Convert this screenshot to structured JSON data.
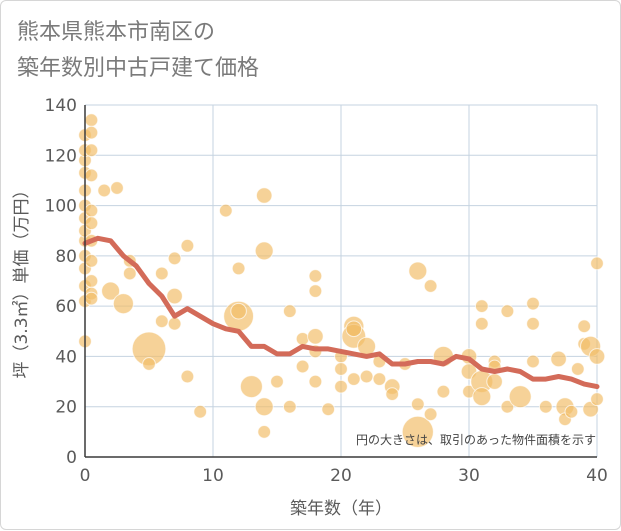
{
  "title_lines": [
    "熊本県熊本市南区の",
    "築年数別中古戸建て価格"
  ],
  "colors": {
    "bubble": "#f2bd67",
    "line": "#d36b59",
    "grid": "#c5d3e0",
    "axis": "#3a3a3a"
  },
  "chart_data": {
    "type": "scatter",
    "title": "熊本県熊本市南区の 築年数別中古戸建て価格",
    "xlabel": "築年数（年）",
    "ylabel": "坪（3.3㎡）単価（万円）",
    "xlim": [
      0,
      40
    ],
    "ylim": [
      0,
      140
    ],
    "xticks": [
      0,
      10,
      20,
      30,
      40
    ],
    "yticks": [
      0,
      20,
      40,
      60,
      80,
      100,
      120,
      140
    ],
    "grid": true,
    "note": "円の大きさは、取引のあった物件面積を示す",
    "series": [
      {
        "type": "bubble",
        "points": [
          {
            "x": 0,
            "y": 46,
            "size": 2
          },
          {
            "x": 0,
            "y": 62,
            "size": 2
          },
          {
            "x": 0,
            "y": 68,
            "size": 2
          },
          {
            "x": 0,
            "y": 75,
            "size": 2
          },
          {
            "x": 0,
            "y": 80,
            "size": 2
          },
          {
            "x": 0,
            "y": 86,
            "size": 2
          },
          {
            "x": 0,
            "y": 90,
            "size": 2
          },
          {
            "x": 0,
            "y": 95,
            "size": 2
          },
          {
            "x": 0,
            "y": 100,
            "size": 2
          },
          {
            "x": 0,
            "y": 106,
            "size": 2
          },
          {
            "x": 0,
            "y": 113,
            "size": 2
          },
          {
            "x": 0,
            "y": 118,
            "size": 2
          },
          {
            "x": 0,
            "y": 122,
            "size": 2
          },
          {
            "x": 0,
            "y": 128,
            "size": 2
          },
          {
            "x": 0.5,
            "y": 134,
            "size": 2
          },
          {
            "x": 0.5,
            "y": 129,
            "size": 2
          },
          {
            "x": 0.5,
            "y": 122,
            "size": 2
          },
          {
            "x": 0.5,
            "y": 112,
            "size": 2
          },
          {
            "x": 0.5,
            "y": 98,
            "size": 2
          },
          {
            "x": 0.5,
            "y": 93,
            "size": 2
          },
          {
            "x": 0.5,
            "y": 86,
            "size": 2
          },
          {
            "x": 0.5,
            "y": 78,
            "size": 2
          },
          {
            "x": 0.5,
            "y": 70,
            "size": 2
          },
          {
            "x": 0.5,
            "y": 65,
            "size": 2
          },
          {
            "x": 0.5,
            "y": 63,
            "size": 2
          },
          {
            "x": 1.5,
            "y": 106,
            "size": 2
          },
          {
            "x": 2.5,
            "y": 107,
            "size": 2
          },
          {
            "x": 2,
            "y": 66,
            "size": 4
          },
          {
            "x": 3,
            "y": 61,
            "size": 5
          },
          {
            "x": 3.5,
            "y": 78,
            "size": 2
          },
          {
            "x": 3.5,
            "y": 73,
            "size": 2
          },
          {
            "x": 5,
            "y": 43,
            "size": 14
          },
          {
            "x": 5,
            "y": 37,
            "size": 2
          },
          {
            "x": 6,
            "y": 73,
            "size": 2
          },
          {
            "x": 6,
            "y": 54,
            "size": 2
          },
          {
            "x": 7,
            "y": 79,
            "size": 2
          },
          {
            "x": 7,
            "y": 64,
            "size": 3
          },
          {
            "x": 7,
            "y": 53,
            "size": 2
          },
          {
            "x": 8,
            "y": 84,
            "size": 2
          },
          {
            "x": 8,
            "y": 32,
            "size": 2
          },
          {
            "x": 9,
            "y": 18,
            "size": 2
          },
          {
            "x": 11,
            "y": 98,
            "size": 2
          },
          {
            "x": 12,
            "y": 75,
            "size": 2
          },
          {
            "x": 12,
            "y": 56,
            "size": 11
          },
          {
            "x": 12,
            "y": 58,
            "size": 3
          },
          {
            "x": 13,
            "y": 28,
            "size": 6
          },
          {
            "x": 14,
            "y": 104,
            "size": 3
          },
          {
            "x": 14,
            "y": 82,
            "size": 4
          },
          {
            "x": 14,
            "y": 20,
            "size": 4
          },
          {
            "x": 14,
            "y": 10,
            "size": 2
          },
          {
            "x": 15,
            "y": 30,
            "size": 2
          },
          {
            "x": 16,
            "y": 58,
            "size": 2
          },
          {
            "x": 16,
            "y": 20,
            "size": 2
          },
          {
            "x": 17,
            "y": 47,
            "size": 2
          },
          {
            "x": 17,
            "y": 36,
            "size": 2
          },
          {
            "x": 18,
            "y": 72,
            "size": 2
          },
          {
            "x": 18,
            "y": 66,
            "size": 2
          },
          {
            "x": 18,
            "y": 48,
            "size": 3
          },
          {
            "x": 18,
            "y": 42,
            "size": 2
          },
          {
            "x": 18,
            "y": 30,
            "size": 2
          },
          {
            "x": 19,
            "y": 19,
            "size": 2
          },
          {
            "x": 20,
            "y": 40,
            "size": 2
          },
          {
            "x": 20,
            "y": 35,
            "size": 2
          },
          {
            "x": 20,
            "y": 28,
            "size": 2
          },
          {
            "x": 21,
            "y": 52,
            "size": 5
          },
          {
            "x": 21,
            "y": 48,
            "size": 7
          },
          {
            "x": 21,
            "y": 51,
            "size": 3
          },
          {
            "x": 21,
            "y": 31,
            "size": 2
          },
          {
            "x": 22,
            "y": 44,
            "size": 4
          },
          {
            "x": 22,
            "y": 32,
            "size": 2
          },
          {
            "x": 23,
            "y": 38,
            "size": 2
          },
          {
            "x": 23,
            "y": 31,
            "size": 2
          },
          {
            "x": 24,
            "y": 28,
            "size": 3
          },
          {
            "x": 24,
            "y": 25,
            "size": 2
          },
          {
            "x": 25,
            "y": 37,
            "size": 2
          },
          {
            "x": 26,
            "y": 74,
            "size": 4
          },
          {
            "x": 26,
            "y": 21,
            "size": 2
          },
          {
            "x": 26,
            "y": 10,
            "size": 12
          },
          {
            "x": 27,
            "y": 68,
            "size": 2
          },
          {
            "x": 27,
            "y": 17,
            "size": 2
          },
          {
            "x": 28,
            "y": 40,
            "size": 5
          },
          {
            "x": 28,
            "y": 26,
            "size": 2
          },
          {
            "x": 30,
            "y": 40,
            "size": 3
          },
          {
            "x": 30,
            "y": 34,
            "size": 3
          },
          {
            "x": 30,
            "y": 26,
            "size": 2
          },
          {
            "x": 31,
            "y": 60,
            "size": 2
          },
          {
            "x": 31,
            "y": 53,
            "size": 2
          },
          {
            "x": 31,
            "y": 30,
            "size": 6
          },
          {
            "x": 31,
            "y": 24,
            "size": 4
          },
          {
            "x": 32,
            "y": 38,
            "size": 2
          },
          {
            "x": 32,
            "y": 36,
            "size": 2
          },
          {
            "x": 32,
            "y": 30,
            "size": 3
          },
          {
            "x": 33,
            "y": 58,
            "size": 2
          },
          {
            "x": 33,
            "y": 20,
            "size": 2
          },
          {
            "x": 34,
            "y": 24,
            "size": 6
          },
          {
            "x": 35,
            "y": 61,
            "size": 2
          },
          {
            "x": 35,
            "y": 53,
            "size": 2
          },
          {
            "x": 35,
            "y": 38,
            "size": 2
          },
          {
            "x": 36,
            "y": 20,
            "size": 2
          },
          {
            "x": 37,
            "y": 39,
            "size": 3
          },
          {
            "x": 37.5,
            "y": 20,
            "size": 4
          },
          {
            "x": 37.5,
            "y": 15,
            "size": 2
          },
          {
            "x": 38,
            "y": 18,
            "size": 2
          },
          {
            "x": 38.5,
            "y": 35,
            "size": 2
          },
          {
            "x": 39,
            "y": 45,
            "size": 2
          },
          {
            "x": 39,
            "y": 52,
            "size": 2
          },
          {
            "x": 39.5,
            "y": 44,
            "size": 5
          },
          {
            "x": 39.5,
            "y": 19,
            "size": 3
          },
          {
            "x": 40,
            "y": 77,
            "size": 2
          },
          {
            "x": 40,
            "y": 40,
            "size": 3
          },
          {
            "x": 40,
            "y": 23,
            "size": 2
          }
        ]
      },
      {
        "type": "line",
        "x": [
          0,
          1,
          2,
          3,
          4,
          5,
          6,
          7,
          8,
          9,
          10,
          11,
          12,
          13,
          14,
          15,
          16,
          17,
          18,
          19,
          20,
          21,
          22,
          23,
          24,
          25,
          26,
          27,
          28,
          29,
          30,
          31,
          32,
          33,
          34,
          35,
          36,
          37,
          38,
          39,
          40
        ],
        "y": [
          85,
          87,
          86,
          80,
          76,
          69,
          64,
          56,
          59,
          56,
          53,
          51,
          50,
          44,
          44,
          41,
          41,
          44,
          43,
          43,
          42,
          41,
          40,
          41,
          37,
          37,
          38,
          38,
          37,
          40,
          39,
          35,
          34,
          35,
          34,
          31,
          31,
          32,
          31,
          29,
          28
        ]
      }
    ]
  }
}
